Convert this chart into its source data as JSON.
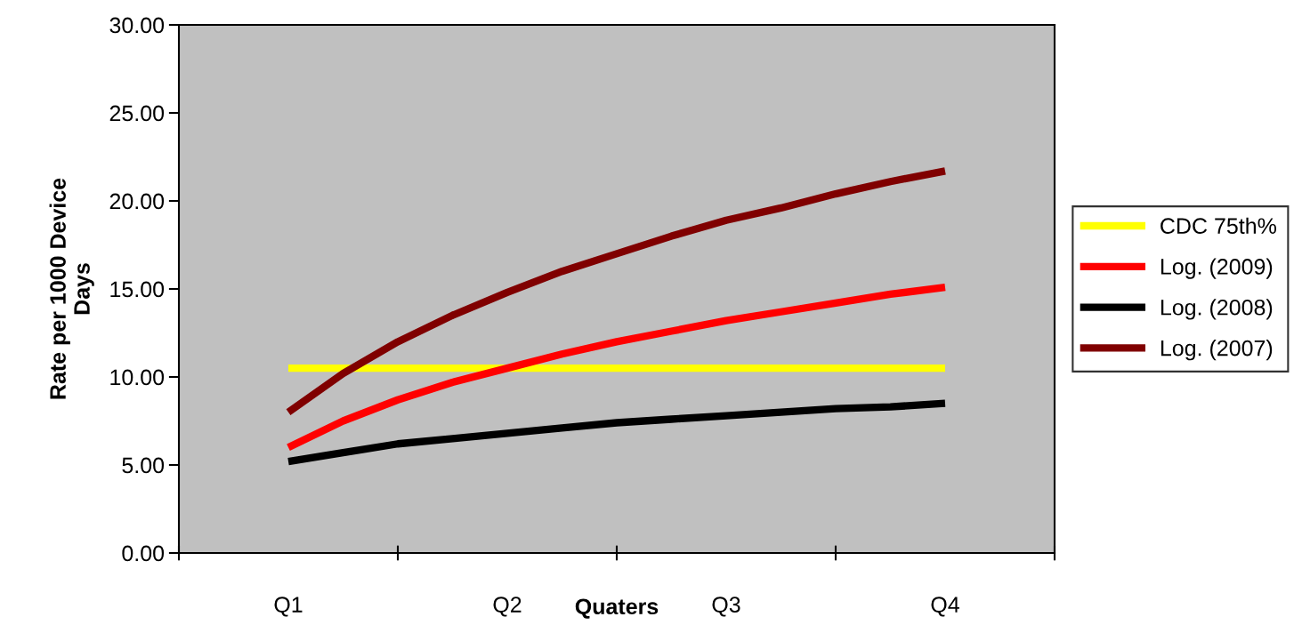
{
  "chart_data": {
    "type": "line",
    "xlabel": "Quaters",
    "ylabel": "Rate per 1000 Device\nDays",
    "categories": [
      "Q1",
      null,
      null,
      null,
      "Q2",
      null,
      null,
      null,
      "Q3",
      null,
      null,
      null,
      "Q4"
    ],
    "series": [
      {
        "name": "CDC 75th%",
        "color": "#ffff00",
        "values": [
          10.5,
          10.5,
          10.5,
          10.5,
          10.5,
          10.5,
          10.5,
          10.5,
          10.5,
          10.5,
          10.5,
          10.5,
          10.5
        ]
      },
      {
        "name": "Log. (2009)",
        "color": "#ff0000",
        "values": [
          6.0,
          7.5,
          8.7,
          9.7,
          10.5,
          11.3,
          12.0,
          12.6,
          13.2,
          13.7,
          14.2,
          14.7,
          15.1
        ]
      },
      {
        "name": "Log. (2008)",
        "color": "#000000",
        "values": [
          5.2,
          5.7,
          6.2,
          6.5,
          6.8,
          7.1,
          7.4,
          7.6,
          7.8,
          8.0,
          8.2,
          8.3,
          8.5
        ]
      },
      {
        "name": "Log. (2007)",
        "color": "#800000",
        "values": [
          8.0,
          10.2,
          12.0,
          13.5,
          14.8,
          16.0,
          17.0,
          18.0,
          18.9,
          19.6,
          20.4,
          21.1,
          21.7
        ]
      }
    ],
    "ylim": [
      0,
      30
    ],
    "yticks": [
      {
        "value": 0,
        "label": "0.00"
      },
      {
        "value": 5,
        "label": "5.00"
      },
      {
        "value": 10,
        "label": "10.00"
      },
      {
        "value": 15,
        "label": "15.00"
      },
      {
        "value": 20,
        "label": "20.00"
      },
      {
        "value": 25,
        "label": "25.00"
      },
      {
        "value": 30,
        "label": "30.00"
      }
    ],
    "grid": false,
    "legend": "right",
    "marker": "none",
    "line_style": "solid"
  }
}
